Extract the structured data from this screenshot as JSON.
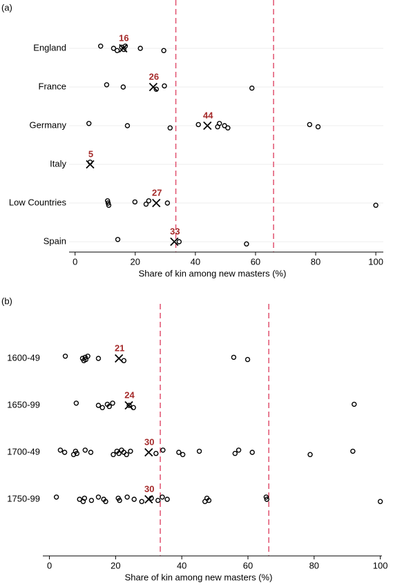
{
  "chart_data": [
    {
      "type": "dot",
      "panel_label": "(a)",
      "x_label": "Share of kin among new masters (%)",
      "xlim": [
        -2,
        102.5
      ],
      "xticks": [
        0,
        20,
        40,
        60,
        80,
        100
      ],
      "reference_lines": [
        33.5,
        66
      ],
      "marker_color": "#000000",
      "mean_color": "#a52a2a",
      "reference_color": "#e0506e",
      "grid": true,
      "groups": [
        {
          "name": "England",
          "values": [
            8.5,
            12.8,
            14,
            15.5,
            16.2,
            16.7,
            21.7,
            29.5
          ],
          "mean": 16
        },
        {
          "name": "France",
          "values": [
            10.5,
            16,
            27,
            29.7,
            58.8
          ],
          "mean": 26
        },
        {
          "name": "Germany",
          "values": [
            4.6,
            17.4,
            31.6,
            41,
            47.4,
            48,
            49.7,
            50.8,
            78,
            80.8
          ],
          "mean": 44
        },
        {
          "name": "Italy",
          "values": [
            5
          ],
          "mean": 5
        },
        {
          "name": "Low Countries",
          "values": [
            10.8,
            11,
            11.2,
            19.9,
            23.6,
            24.5,
            30.7,
            100
          ],
          "mean": 27
        },
        {
          "name": "Spain",
          "values": [
            14.2,
            34.6,
            57
          ],
          "mean": 33
        }
      ]
    },
    {
      "type": "dot",
      "panel_label": "(b)",
      "x_label": "Share of kin among new masters (%)",
      "xlim": [
        -2,
        100.5
      ],
      "xticks": [
        0,
        20,
        40,
        60,
        80,
        100
      ],
      "reference_lines": [
        33.5,
        66.3
      ],
      "marker_color": "#000000",
      "mean_color": "#a52a2a",
      "reference_color": "#e0506e",
      "grid": false,
      "groups": [
        {
          "name": "1600-49",
          "values": [
            4.8,
            10,
            10.4,
            10.8,
            11,
            11.6,
            14.8,
            22.5,
            55.7,
            59.9
          ],
          "mean": 21
        },
        {
          "name": "1650-99",
          "values": [
            8.1,
            14.8,
            16,
            17.5,
            18.1,
            19.1,
            24.1,
            25.4,
            92.1
          ],
          "mean": 24
        },
        {
          "name": "1700-49",
          "values": [
            3.3,
            4.6,
            7.3,
            7.9,
            8.3,
            10.8,
            12.5,
            19.3,
            20.4,
            21,
            21.8,
            22.5,
            23.3,
            24.5,
            32.2,
            34.3,
            39.1,
            40.3,
            45.3,
            56.1,
            57.2,
            61.3,
            78.8,
            91.7
          ],
          "mean": 30
        },
        {
          "name": "1750-99",
          "values": [
            2.1,
            9.1,
            10.2,
            10.6,
            12.7,
            14.8,
            16.4,
            17,
            20.8,
            21.2,
            23.5,
            25.6,
            27.9,
            30.8,
            32.8,
            34.1,
            35.6,
            47,
            47.6,
            48.2,
            65.5,
            65.7,
            100
          ],
          "mean": 30
        }
      ]
    }
  ]
}
